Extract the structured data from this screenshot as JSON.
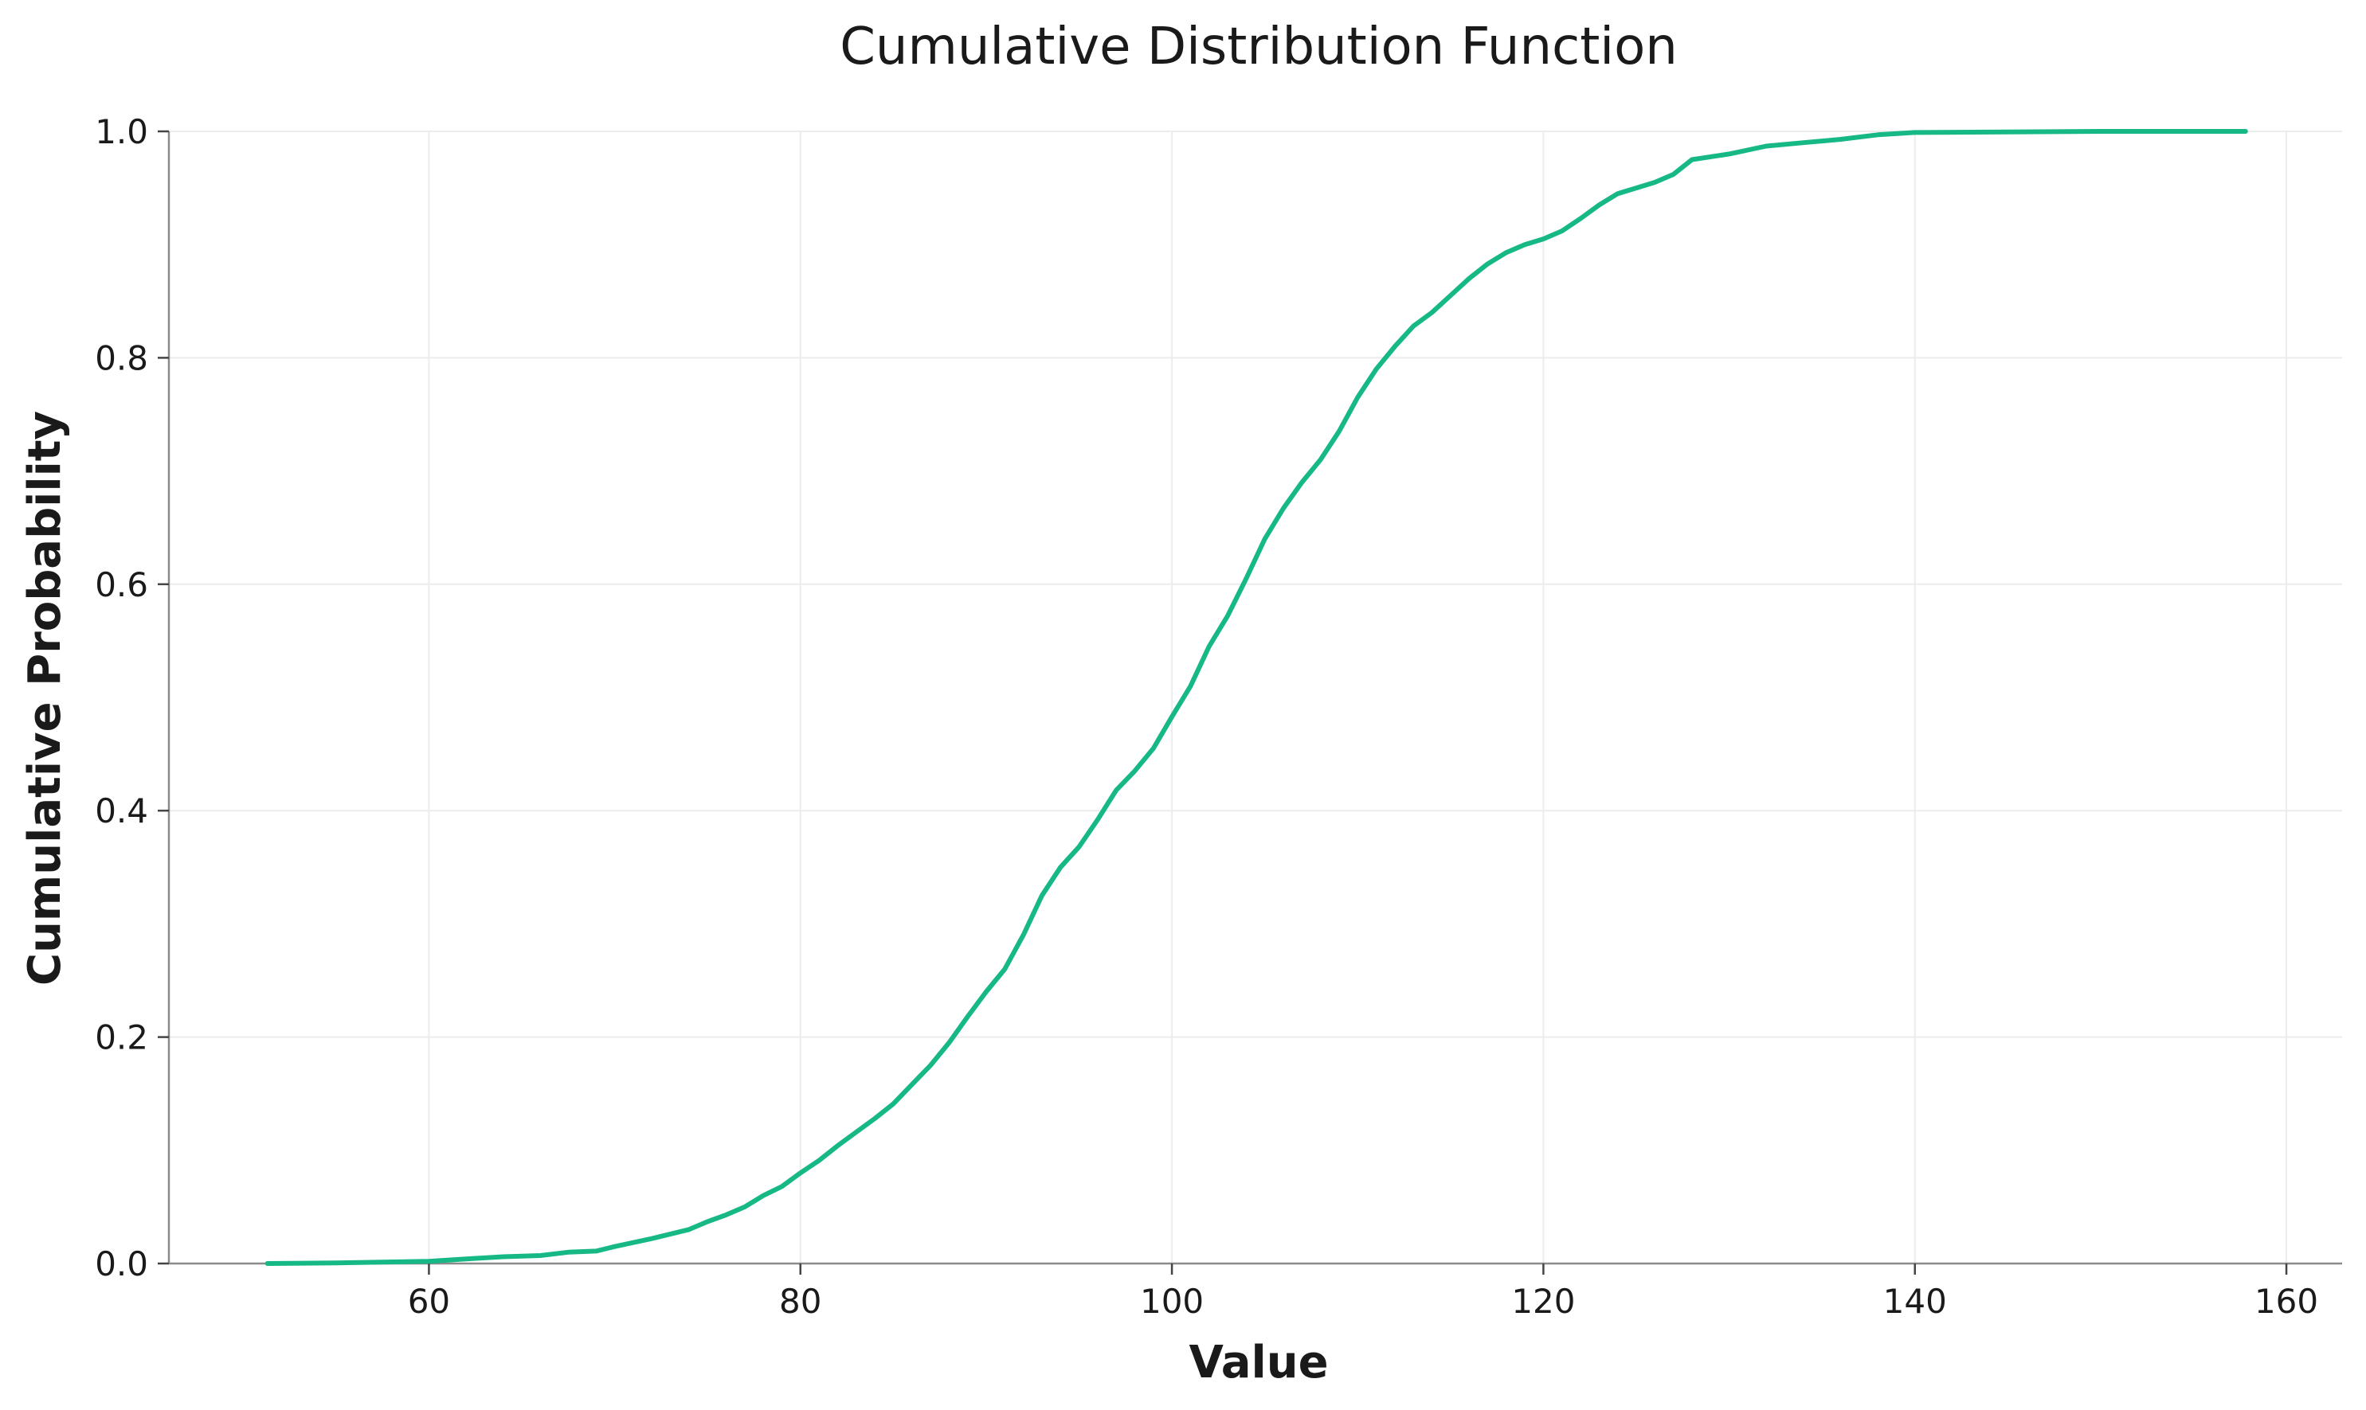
{
  "chart_data": {
    "type": "line",
    "title": "Cumulative Distribution Function",
    "xlabel": "Value",
    "ylabel": "Cumulative Probability",
    "xlim": [
      46,
      163
    ],
    "ylim": [
      0,
      1
    ],
    "xticks": [
      60,
      80,
      100,
      120,
      140,
      160
    ],
    "yticks": [
      0.0,
      0.2,
      0.4,
      0.6,
      0.8,
      1.0
    ],
    "xtick_labels": [
      "60",
      "80",
      "100",
      "120",
      "140",
      "160"
    ],
    "ytick_labels": [
      "0.0",
      "0.2",
      "0.4",
      "0.6",
      "0.8",
      "1.0"
    ],
    "grid": true,
    "line_color": "#16b886",
    "series": [
      {
        "x": [
          51.3,
          55,
          60,
          62,
          64,
          66,
          67.5,
          69,
          70,
          72,
          74,
          75,
          76,
          77,
          78,
          79,
          80,
          81,
          82,
          83,
          84,
          85,
          86,
          87,
          88,
          89,
          90,
          91,
          92,
          93,
          94,
          95,
          96,
          97,
          98,
          99,
          100,
          101,
          102,
          103,
          104,
          105,
          106,
          107,
          108,
          109,
          110,
          111,
          112,
          113,
          114,
          115,
          116,
          117,
          118,
          119,
          120,
          121,
          122,
          123,
          124,
          125,
          126,
          127,
          128,
          130,
          132,
          134,
          136,
          138,
          140,
          150,
          157.8
        ],
        "values": [
          0.0,
          0.0005,
          0.002,
          0.004,
          0.006,
          0.007,
          0.01,
          0.011,
          0.015,
          0.022,
          0.03,
          0.037,
          0.043,
          0.05,
          0.06,
          0.068,
          0.08,
          0.091,
          0.104,
          0.116,
          0.128,
          0.141,
          0.158,
          0.175,
          0.195,
          0.218,
          0.24,
          0.26,
          0.29,
          0.325,
          0.35,
          0.368,
          0.392,
          0.418,
          0.435,
          0.455,
          0.483,
          0.51,
          0.545,
          0.572,
          0.605,
          0.64,
          0.667,
          0.69,
          0.71,
          0.735,
          0.765,
          0.79,
          0.81,
          0.828,
          0.84,
          0.855,
          0.87,
          0.883,
          0.893,
          0.9,
          0.905,
          0.912,
          0.923,
          0.935,
          0.945,
          0.95,
          0.955,
          0.962,
          0.975,
          0.98,
          0.987,
          0.99,
          0.993,
          0.997,
          0.999,
          1.0,
          1.0
        ]
      }
    ]
  }
}
